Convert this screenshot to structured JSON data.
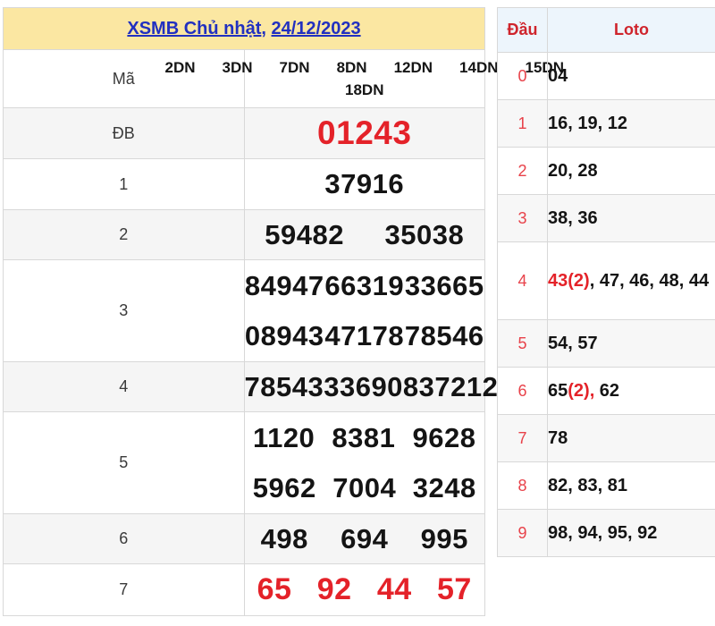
{
  "colors": {
    "title_bg": "#fbe7a2",
    "link_blue": "#2130c0",
    "red": "#e42229",
    "dau_red": "#e8424a",
    "header_red": "#cf242c",
    "loto_header_bg": "#edf5fc",
    "row_alt_bg": "#f5f5f5",
    "border": "#d8d8d8"
  },
  "left_table": {
    "title": {
      "draw_link": "XSMB Chủ nhật",
      "separator": ", ",
      "date_link": "24/12/2023"
    },
    "ma_row": {
      "label": "Mã",
      "codes_line1": [
        "2DN",
        "3DN",
        "7DN",
        "8DN",
        "12DN",
        "14DN",
        "15DN"
      ],
      "codes_line2": [
        "18DN"
      ]
    },
    "rows": [
      {
        "label": "ĐB",
        "lines": [
          [
            "01243"
          ]
        ]
      },
      {
        "label": "1",
        "lines": [
          [
            "37916"
          ]
        ]
      },
      {
        "label": "2",
        "lines": [
          [
            "59482",
            "35038"
          ]
        ]
      },
      {
        "label": "3",
        "lines": [
          [
            "84947",
            "66319",
            "33665"
          ],
          [
            "08943",
            "47178",
            "78546"
          ]
        ]
      },
      {
        "label": "4",
        "lines": [
          [
            "7854",
            "3336",
            "9083",
            "7212"
          ]
        ]
      },
      {
        "label": "5",
        "lines": [
          [
            "1120",
            "8381",
            "9628"
          ],
          [
            "5962",
            "7004",
            "3248"
          ]
        ]
      },
      {
        "label": "6",
        "lines": [
          [
            "498",
            "694",
            "995"
          ]
        ]
      },
      {
        "label": "7",
        "lines": [
          [
            "65",
            "92",
            "44",
            "57"
          ]
        ]
      }
    ]
  },
  "loto_table": {
    "headers": {
      "dau": "Đầu",
      "loto": "Loto"
    },
    "rows": [
      {
        "dau": "0",
        "parts": [
          {
            "text": "04"
          }
        ]
      },
      {
        "dau": "1",
        "parts": [
          {
            "text": "16, 19, 12"
          }
        ]
      },
      {
        "dau": "2",
        "parts": [
          {
            "text": "20, 28"
          }
        ]
      },
      {
        "dau": "3",
        "parts": [
          {
            "text": "38, 36"
          }
        ]
      },
      {
        "dau": "4",
        "parts": [
          {
            "text": "43(2)",
            "red": true
          },
          {
            "text": ", 47, 46, 48, 44"
          }
        ]
      },
      {
        "dau": "5",
        "parts": [
          {
            "text": "54, 57"
          }
        ]
      },
      {
        "dau": "6",
        "parts": [
          {
            "text": "65"
          },
          {
            "text": "(2),",
            "red": true
          },
          {
            "text": " 62"
          }
        ]
      },
      {
        "dau": "7",
        "parts": [
          {
            "text": "78"
          }
        ]
      },
      {
        "dau": "8",
        "parts": [
          {
            "text": "82, 83, 81"
          }
        ]
      },
      {
        "dau": "9",
        "parts": [
          {
            "text": "98, 94, 95, 92"
          }
        ]
      }
    ]
  }
}
